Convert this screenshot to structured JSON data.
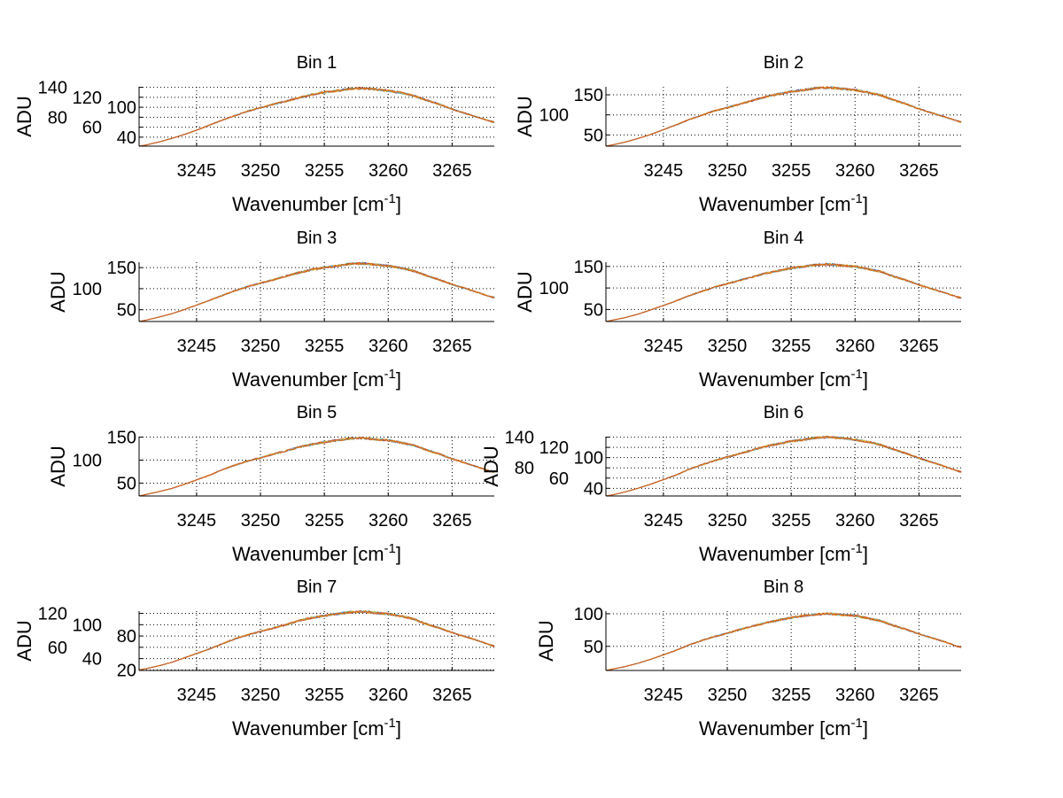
{
  "chart_data": [
    {
      "type": "line",
      "title": "Bin 1",
      "xlabel": "Wavenumber [cm",
      "xlabel_sup": "-1",
      "xlabel_end": "]",
      "ylabel": "ADU",
      "xlim": [
        3240.5,
        3268.3
      ],
      "ylim": [
        22,
        141
      ],
      "xticks": [
        3245,
        3250,
        3255,
        3260,
        3265
      ],
      "yticks": [
        40,
        60,
        80,
        100,
        120,
        140
      ],
      "grid": true,
      "x": [
        3240.5,
        3241,
        3242,
        3243,
        3244,
        3245,
        3246,
        3247,
        3248,
        3249,
        3250,
        3251,
        3252,
        3253,
        3254,
        3255,
        3256,
        3257,
        3258,
        3259,
        3260,
        3261,
        3262,
        3263,
        3264,
        3265,
        3266,
        3267,
        3268,
        3268.3
      ],
      "y": [
        22,
        24,
        30,
        37,
        45,
        54,
        64,
        74,
        83,
        92,
        99,
        106,
        112,
        119,
        125,
        130,
        133,
        137,
        138,
        136,
        133,
        129,
        123,
        114,
        106,
        96,
        88,
        80,
        72,
        70
      ]
    },
    {
      "type": "line",
      "title": "Bin 2",
      "xlabel": "Wavenumber [cm",
      "xlabel_sup": "-1",
      "xlabel_end": "]",
      "ylabel": "ADU",
      "xlim": [
        3240.5,
        3268.3
      ],
      "ylim": [
        22,
        170
      ],
      "xticks": [
        3245,
        3250,
        3255,
        3260,
        3265
      ],
      "yticks": [
        50,
        100,
        150
      ],
      "grid": true,
      "x": [
        3240.5,
        3241,
        3242,
        3243,
        3244,
        3245,
        3246,
        3247,
        3248,
        3249,
        3250,
        3251,
        3252,
        3253,
        3254,
        3255,
        3256,
        3257,
        3258,
        3259,
        3260,
        3261,
        3262,
        3263,
        3264,
        3265,
        3266,
        3267,
        3268,
        3268.3
      ],
      "y": [
        22,
        25,
        32,
        41,
        51,
        63,
        75,
        88,
        99,
        110,
        118,
        127,
        136,
        145,
        152,
        158,
        162,
        167,
        168,
        165,
        162,
        156,
        149,
        137,
        127,
        115,
        105,
        95,
        85,
        82
      ]
    },
    {
      "type": "line",
      "title": "Bin 3",
      "xlabel": "Wavenumber [cm",
      "xlabel_sup": "-1",
      "xlabel_end": "]",
      "ylabel": "ADU",
      "xlim": [
        3240.5,
        3268.3
      ],
      "ylim": [
        22,
        163
      ],
      "xticks": [
        3245,
        3250,
        3255,
        3260,
        3265
      ],
      "yticks": [
        50,
        100,
        150
      ],
      "grid": true,
      "x": [
        3240.5,
        3241,
        3242,
        3243,
        3244,
        3245,
        3246,
        3247,
        3248,
        3249,
        3250,
        3251,
        3252,
        3253,
        3254,
        3255,
        3256,
        3257,
        3258,
        3259,
        3260,
        3261,
        3262,
        3263,
        3264,
        3265,
        3266,
        3267,
        3268,
        3268.3
      ],
      "y": [
        22,
        25,
        32,
        40,
        50,
        61,
        72,
        84,
        95,
        105,
        113,
        121,
        130,
        138,
        145,
        150,
        154,
        159,
        160,
        157,
        154,
        149,
        142,
        131,
        121,
        110,
        101,
        91,
        81,
        79
      ]
    },
    {
      "type": "line",
      "title": "Bin 4",
      "xlabel": "Wavenumber [cm",
      "xlabel_sup": "-1",
      "xlabel_end": "]",
      "ylabel": "ADU",
      "xlim": [
        3240.5,
        3268.3
      ],
      "ylim": [
        22,
        160
      ],
      "xticks": [
        3245,
        3250,
        3255,
        3260,
        3265
      ],
      "yticks": [
        50,
        100,
        150
      ],
      "grid": true,
      "x": [
        3240.5,
        3241,
        3242,
        3243,
        3244,
        3245,
        3246,
        3247,
        3248,
        3249,
        3250,
        3251,
        3252,
        3253,
        3254,
        3255,
        3256,
        3257,
        3258,
        3259,
        3260,
        3261,
        3262,
        3263,
        3264,
        3265,
        3266,
        3267,
        3268,
        3268.3
      ],
      "y": [
        22,
        25,
        31,
        39,
        49,
        59,
        70,
        82,
        92,
        102,
        110,
        118,
        126,
        134,
        140,
        146,
        150,
        154,
        155,
        152,
        150,
        144,
        138,
        127,
        118,
        107,
        98,
        89,
        79,
        77
      ]
    },
    {
      "type": "line",
      "title": "Bin 5",
      "xlabel": "Wavenumber [cm",
      "xlabel_sup": "-1",
      "xlabel_end": "]",
      "ylabel": "ADU",
      "xlim": [
        3240.5,
        3268.3
      ],
      "ylim": [
        22,
        151
      ],
      "xticks": [
        3245,
        3250,
        3255,
        3260,
        3265
      ],
      "yticks": [
        50,
        100,
        150
      ],
      "grid": true,
      "x": [
        3240.5,
        3241,
        3242,
        3243,
        3244,
        3245,
        3246,
        3247,
        3248,
        3249,
        3250,
        3251,
        3252,
        3253,
        3254,
        3255,
        3256,
        3257,
        3258,
        3259,
        3260,
        3261,
        3262,
        3263,
        3264,
        3265,
        3266,
        3267,
        3268,
        3268.3
      ],
      "y": [
        22,
        25,
        31,
        38,
        47,
        57,
        67,
        79,
        89,
        98,
        105,
        113,
        120,
        128,
        134,
        139,
        143,
        147,
        148,
        145,
        143,
        138,
        132,
        122,
        113,
        103,
        94,
        85,
        76,
        74
      ]
    },
    {
      "type": "line",
      "title": "Bin 6",
      "xlabel": "Wavenumber [cm",
      "xlabel_sup": "-1",
      "xlabel_end": "]",
      "ylabel": "ADU",
      "xlim": [
        3240.5,
        3268.3
      ],
      "ylim": [
        25,
        141
      ],
      "xticks": [
        3245,
        3250,
        3255,
        3260,
        3265
      ],
      "yticks": [
        40,
        60,
        80,
        100,
        120,
        140
      ],
      "grid": true,
      "x": [
        3240.5,
        3241,
        3242,
        3243,
        3244,
        3245,
        3246,
        3247,
        3248,
        3249,
        3250,
        3251,
        3252,
        3253,
        3254,
        3255,
        3256,
        3257,
        3258,
        3259,
        3260,
        3261,
        3262,
        3263,
        3264,
        3265,
        3266,
        3267,
        3268,
        3268.3
      ],
      "y": [
        25,
        27,
        33,
        40,
        48,
        57,
        66,
        77,
        86,
        94,
        101,
        108,
        115,
        122,
        127,
        132,
        135,
        139,
        140,
        138,
        135,
        131,
        125,
        116,
        108,
        99,
        91,
        83,
        74,
        72
      ]
    },
    {
      "type": "line",
      "title": "Bin 7",
      "xlabel": "Wavenumber [cm",
      "xlabel_sup": "-1",
      "xlabel_end": "]",
      "ylabel": "ADU",
      "xlim": [
        3240.5,
        3268.3
      ],
      "ylim": [
        19,
        124
      ],
      "xticks": [
        3245,
        3250,
        3255,
        3260,
        3265
      ],
      "yticks": [
        20,
        40,
        60,
        80,
        100,
        120
      ],
      "grid": true,
      "x": [
        3240.5,
        3241,
        3242,
        3243,
        3244,
        3245,
        3246,
        3247,
        3248,
        3249,
        3250,
        3251,
        3252,
        3253,
        3254,
        3255,
        3256,
        3257,
        3258,
        3259,
        3260,
        3261,
        3262,
        3263,
        3264,
        3265,
        3266,
        3267,
        3268,
        3268.3
      ],
      "y": [
        20,
        22,
        27,
        33,
        41,
        49,
        57,
        66,
        75,
        82,
        88,
        94,
        100,
        107,
        112,
        116,
        119,
        122,
        123,
        121,
        119,
        115,
        110,
        101,
        94,
        86,
        79,
        72,
        64,
        62
      ]
    },
    {
      "type": "line",
      "title": "Bin 8",
      "xlabel": "Wavenumber [cm",
      "xlabel_sup": "-1",
      "xlabel_end": "]",
      "ylabel": "ADU",
      "xlim": [
        3240.5,
        3268.3
      ],
      "ylim": [
        13,
        104
      ],
      "xticks": [
        3245,
        3250,
        3255,
        3260,
        3265
      ],
      "yticks": [
        50,
        100
      ],
      "grid": true,
      "x": [
        3240.5,
        3241,
        3242,
        3243,
        3244,
        3245,
        3246,
        3247,
        3248,
        3249,
        3250,
        3251,
        3252,
        3253,
        3254,
        3255,
        3256,
        3257,
        3258,
        3259,
        3260,
        3261,
        3262,
        3263,
        3264,
        3265,
        3266,
        3267,
        3268,
        3268.3
      ],
      "y": [
        13,
        15,
        19,
        24,
        30,
        37,
        44,
        52,
        59,
        65,
        70,
        76,
        81,
        86,
        90,
        94,
        97,
        99,
        100,
        98,
        97,
        93,
        89,
        82,
        76,
        69,
        63,
        57,
        50,
        49
      ]
    }
  ],
  "series_colors": [
    "#0072bd",
    "#7e2f8e",
    "#77ac30",
    "#4dbeee",
    "#edb120",
    "#d95319"
  ]
}
